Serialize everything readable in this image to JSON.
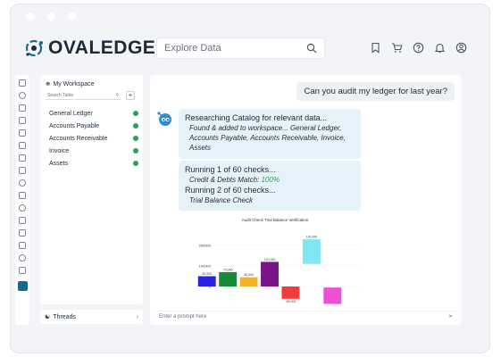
{
  "app": {
    "logo_text": "OVALEDGE",
    "search_placeholder": "Explore Data"
  },
  "header_icons": [
    "bookmark-icon",
    "cart-icon",
    "help-icon",
    "bell-icon",
    "user-icon"
  ],
  "workspace": {
    "title": "My Workspace",
    "search_placeholder": "Search Table",
    "items": [
      {
        "label": "General Ledger"
      },
      {
        "label": "Accounts Payable"
      },
      {
        "label": "Accounts Receivable"
      },
      {
        "label": "Invoice"
      },
      {
        "label": "Assets"
      }
    ],
    "threads_label": "Threads"
  },
  "chat": {
    "user_message": "Can you audit my ledger for last year?",
    "bubble1": {
      "heading": "Researching Catalog for relevant data...",
      "detail": "Found & added to workspace... General Ledger, Accounts Payable, Accounts Receivable, Invoice, Assets"
    },
    "bubble2": {
      "check1_heading": "Running 1 of 60 checks...",
      "check1_detail": "Credit & Debts Match:",
      "check1_result": "100%",
      "check2_heading": "Running 2 of 60 checks...",
      "check2_detail": "Trial Balance Check"
    },
    "prompt_placeholder": "Enter a prompt here"
  },
  "chart_data": {
    "type": "bar",
    "title": "Audit Check Trial Balance Verification",
    "ylim": [
      -100000,
      300000
    ],
    "yticks": [
      0,
      100000,
      200000
    ],
    "ytick_labels": [
      "0",
      "100000",
      "200000"
    ],
    "values": [
      50000,
      70000,
      45000,
      120000,
      -60000,
      120000,
      -80000
    ],
    "data_labels": [
      "50,000",
      "70,000",
      "45,000",
      "120,000",
      "-60,000",
      "120,000",
      ""
    ],
    "bases": [
      0,
      0,
      0,
      0,
      0,
      110000,
      -5000
    ],
    "colors": [
      "#2a22e0",
      "#1a8a3a",
      "#f4b324",
      "#7a148a",
      "#f23c3c",
      "#7fe6f2",
      "#ee4fd8"
    ]
  }
}
